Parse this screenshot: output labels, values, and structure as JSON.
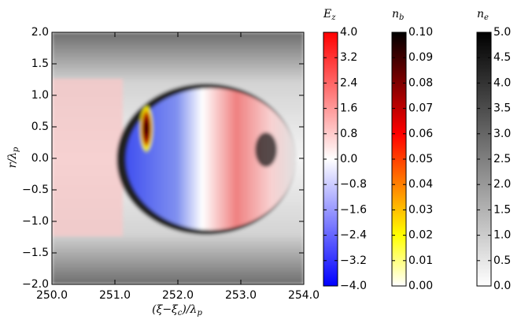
{
  "chart_data": {
    "type": "image",
    "xlabel_parts": [
      "(ξ−ξ",
      "c",
      ")/λ",
      "p"
    ],
    "ylabel_parts": [
      "r/λ",
      "p"
    ],
    "xlim": [
      250,
      254
    ],
    "xticks": [
      {
        "value": 250,
        "label": "250.0"
      },
      {
        "value": 251,
        "label": "251.0"
      },
      {
        "value": 252,
        "label": "252.0"
      },
      {
        "value": 253,
        "label": "253.0"
      },
      {
        "value": 254,
        "label": "254.0"
      }
    ],
    "ylim": [
      -2,
      2
    ],
    "yticks": [
      {
        "value": -2,
        "label": "−2.0"
      },
      {
        "value": -1.5,
        "label": "−1.5"
      },
      {
        "value": -1,
        "label": "−1.0"
      },
      {
        "value": -0.5,
        "label": "−0.5"
      },
      {
        "value": 0,
        "label": "0.0"
      },
      {
        "value": 0.5,
        "label": "0.5"
      },
      {
        "value": 1,
        "label": "1.0"
      },
      {
        "value": 1.5,
        "label": "1.5"
      },
      {
        "value": 2,
        "label": "2.0"
      }
    ],
    "colorbars": [
      {
        "label": "E",
        "label_sub": "z",
        "lim": [
          -4,
          4
        ],
        "colors": [
          "#0000ff",
          "#ffffff",
          "#ff0000"
        ],
        "ticks": [
          {
            "value": -4,
            "label": "−4.0"
          },
          {
            "value": -3.2,
            "label": "−3.2"
          },
          {
            "value": -2.4,
            "label": "−2.4"
          },
          {
            "value": -1.6,
            "label": "−1.6"
          },
          {
            "value": -0.8,
            "label": "−0.8"
          },
          {
            "value": 0,
            "label": "0.0"
          },
          {
            "value": 0.8,
            "label": "0.8"
          },
          {
            "value": 1.6,
            "label": "1.6"
          },
          {
            "value": 2.4,
            "label": "2.4"
          },
          {
            "value": 3.2,
            "label": "3.2"
          },
          {
            "value": 4,
            "label": "4.0"
          }
        ]
      },
      {
        "label": "n",
        "label_sub": "b",
        "lim": [
          0,
          0.1
        ],
        "colors": [
          "#ffffff",
          "#ffff00",
          "#ff8000",
          "#ff0000",
          "#800000",
          "#000000"
        ],
        "ticks": [
          {
            "value": 0,
            "label": "0.00"
          },
          {
            "value": 0.01,
            "label": "0.01"
          },
          {
            "value": 0.02,
            "label": "0.02"
          },
          {
            "value": 0.03,
            "label": "0.03"
          },
          {
            "value": 0.04,
            "label": "0.04"
          },
          {
            "value": 0.05,
            "label": "0.05"
          },
          {
            "value": 0.06,
            "label": "0.06"
          },
          {
            "value": 0.07,
            "label": "0.07"
          },
          {
            "value": 0.08,
            "label": "0.08"
          },
          {
            "value": 0.09,
            "label": "0.09"
          },
          {
            "value": 0.1,
            "label": "0.10"
          }
        ]
      },
      {
        "label": "n",
        "label_sub": "e",
        "lim": [
          0,
          5
        ],
        "colors": [
          "#ffffff",
          "#000000"
        ],
        "ticks": [
          {
            "value": 0,
            "label": "0.0"
          },
          {
            "value": 0.5,
            "label": "0.5"
          },
          {
            "value": 1,
            "label": "1.0"
          },
          {
            "value": 1.5,
            "label": "1.5"
          },
          {
            "value": 2,
            "label": "2.0"
          },
          {
            "value": 2.5,
            "label": "2.5"
          },
          {
            "value": 3,
            "label": "3.0"
          },
          {
            "value": 3.5,
            "label": "3.5"
          },
          {
            "value": 4,
            "label": "4.0"
          },
          {
            "value": 4.5,
            "label": "4.5"
          },
          {
            "value": 5,
            "label": "5.0"
          }
        ]
      }
    ]
  }
}
